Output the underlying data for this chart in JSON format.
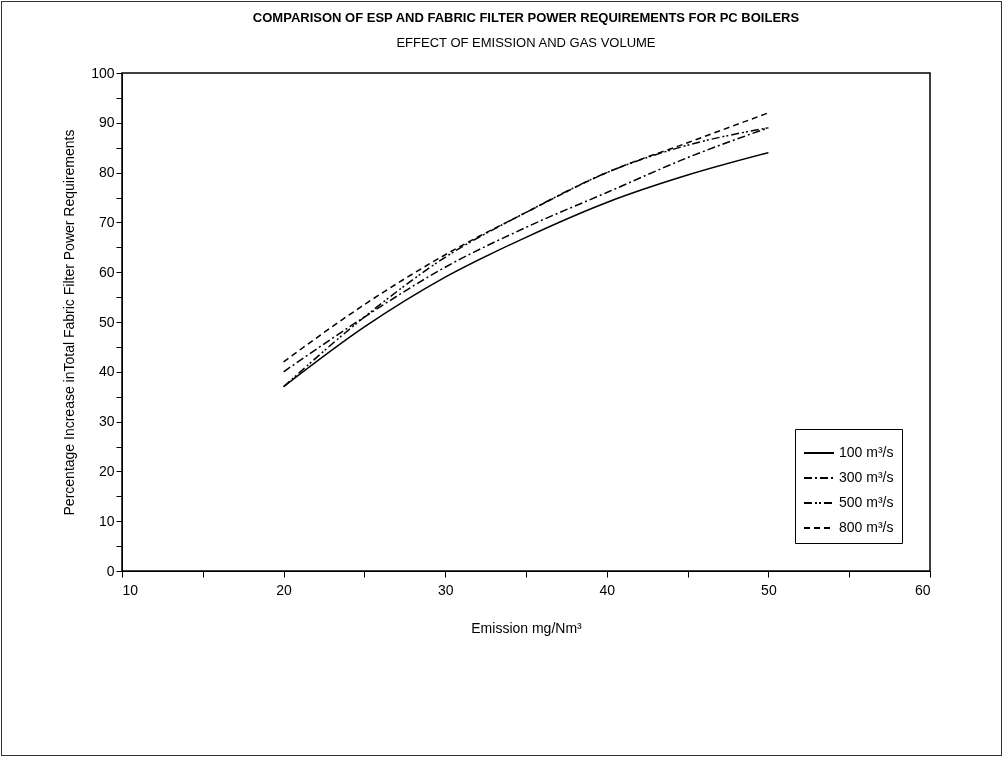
{
  "chart_data": {
    "type": "line",
    "title": "COMPARISON OF ESP AND FABRIC FILTER POWER REQUIREMENTS FOR PC BOILERS",
    "subtitle": "EFFECT OF EMISSION AND GAS VOLUME",
    "xlabel": "Emission  mg/Nm³",
    "ylabel": "Percentage Increase inTotal Fabric Filter Power Requirements",
    "x": [
      20,
      25,
      30,
      35,
      40,
      45,
      50
    ],
    "series": [
      {
        "name": "100 m³/s",
        "color": "#000000",
        "line_style": "solid",
        "values": [
          37,
          49,
          59,
          67,
          74,
          79.5,
          84
        ]
      },
      {
        "name": "300 m³/s",
        "color": "#000000",
        "line_style": "dashdot",
        "values": [
          40,
          51,
          61,
          69,
          76,
          83,
          89
        ]
      },
      {
        "name": "500 m³/s",
        "color": "#000000",
        "line_style": "dashdotdot",
        "values": [
          37,
          51,
          63,
          72,
          80,
          85.5,
          89
        ]
      },
      {
        "name": "800 m³/s",
        "color": "#000000",
        "line_style": "dashed",
        "values": [
          42,
          53.5,
          63.5,
          72,
          80,
          86,
          92
        ]
      }
    ],
    "xlim": [
      10,
      60
    ],
    "xticks": [
      10,
      {
        "value": 15,
        "label": null
      },
      20,
      {
        "value": 25,
        "label": null
      },
      30,
      {
        "value": 35,
        "label": null
      },
      40,
      {
        "value": 45,
        "label": null
      },
      50,
      {
        "value": 55,
        "label": null
      },
      60
    ],
    "ylim": [
      0,
      100
    ],
    "yticks": [
      0,
      {
        "value": 5,
        "label": null
      },
      10,
      {
        "value": 15,
        "label": null
      },
      20,
      {
        "value": 25,
        "label": null
      },
      30,
      {
        "value": 35,
        "label": null
      },
      40,
      {
        "value": 45,
        "label": null
      },
      50,
      {
        "value": 55,
        "label": null
      },
      60,
      {
        "value": 65,
        "label": null
      },
      70,
      {
        "value": 75,
        "label": null
      },
      80,
      {
        "value": 85,
        "label": null
      },
      90,
      {
        "value": 95,
        "label": null
      },
      100
    ],
    "grid": false,
    "legend": "bottom right",
    "marker": "none"
  }
}
